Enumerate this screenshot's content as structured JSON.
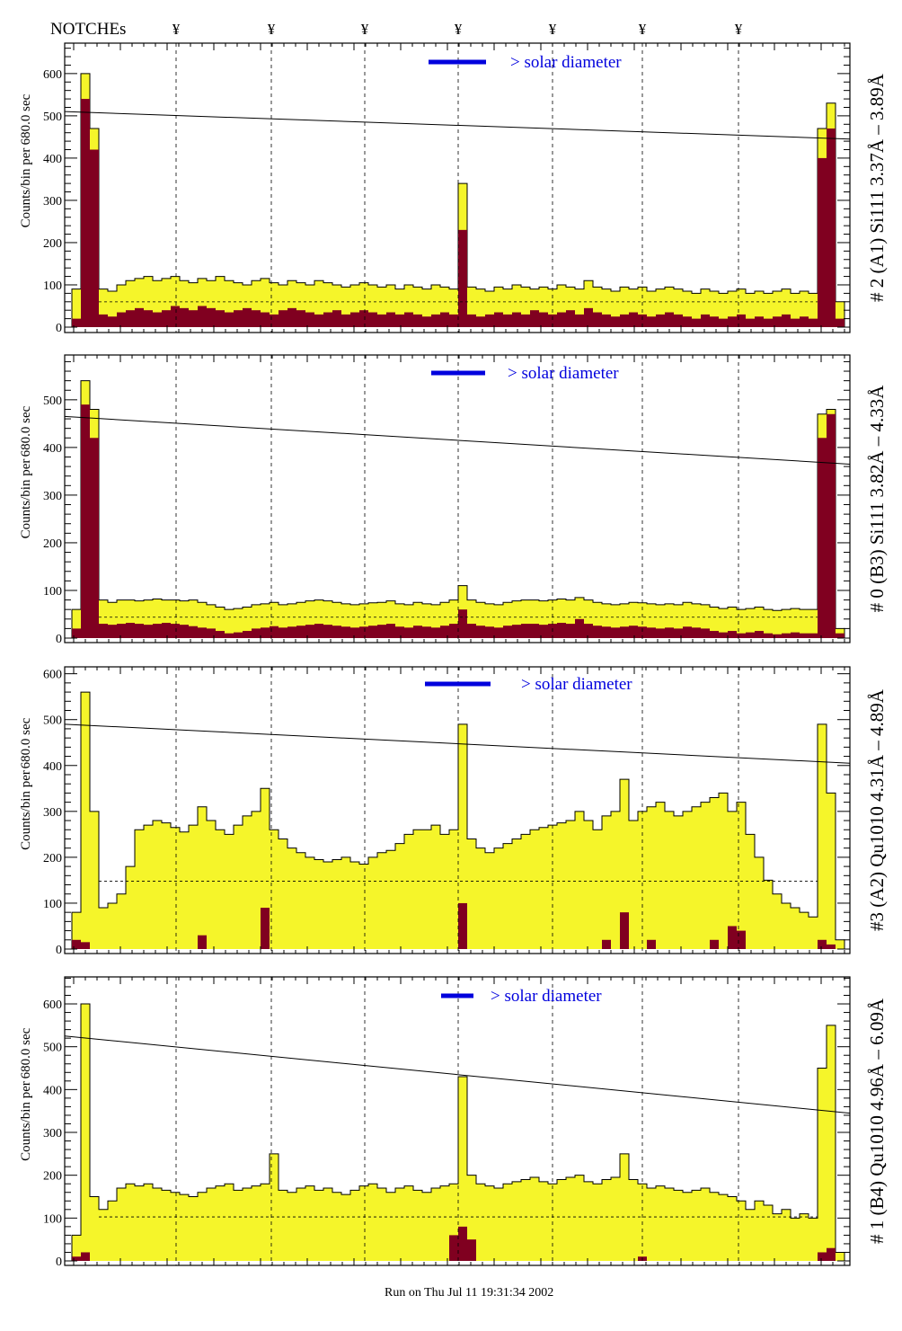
{
  "header": {
    "notches_label": "NOTCHEs",
    "notch_symbol": "¥",
    "notch_count": 7
  },
  "footer": {
    "run_text": "Run on Thu Jul 11 19:31:34 2002"
  },
  "colors": {
    "total_fill": "#f5f52a",
    "filtered_fill": "#800020",
    "legend": "#0000dd",
    "line": "#000000"
  },
  "chart_data": [
    {
      "type": "bar",
      "title": "# 2 (A1) Si111  3.37Å – 3.89Å",
      "ylabel_line1": "Counts/bin per",
      "ylabel_line2": "680.0 sec",
      "legend": "> solar diameter",
      "ylim": [
        0,
        672
      ],
      "yticks": [
        0,
        100,
        200,
        300,
        400,
        500,
        600
      ],
      "trend_line": [
        510,
        445
      ],
      "series": [
        {
          "name": "total",
          "values": [
            90,
            600,
            470,
            90,
            85,
            100,
            110,
            115,
            120,
            110,
            115,
            120,
            110,
            105,
            115,
            110,
            120,
            110,
            105,
            100,
            110,
            115,
            105,
            100,
            110,
            105,
            100,
            110,
            105,
            100,
            95,
            100,
            105,
            100,
            95,
            100,
            90,
            100,
            95,
            90,
            100,
            95,
            90,
            340,
            95,
            90,
            85,
            95,
            90,
            100,
            95,
            90,
            95,
            90,
            100,
            95,
            90,
            110,
            95,
            90,
            85,
            95,
            90,
            95,
            85,
            90,
            95,
            90,
            85,
            80,
            90,
            85,
            80,
            85,
            90,
            80,
            85,
            80,
            85,
            90,
            80,
            85,
            80,
            470,
            530,
            60
          ]
        },
        {
          "name": "filtered",
          "values": [
            20,
            540,
            420,
            30,
            25,
            35,
            40,
            45,
            40,
            35,
            40,
            50,
            45,
            40,
            50,
            45,
            40,
            35,
            40,
            45,
            40,
            35,
            30,
            40,
            45,
            40,
            35,
            30,
            35,
            40,
            30,
            35,
            40,
            35,
            30,
            35,
            30,
            35,
            30,
            25,
            30,
            35,
            30,
            230,
            30,
            25,
            30,
            35,
            30,
            35,
            30,
            40,
            35,
            30,
            35,
            40,
            30,
            45,
            35,
            30,
            25,
            30,
            35,
            30,
            25,
            30,
            35,
            30,
            25,
            20,
            30,
            25,
            20,
            25,
            30,
            20,
            25,
            20,
            25,
            30,
            20,
            25,
            20,
            400,
            470,
            20
          ]
        }
      ]
    },
    {
      "type": "bar",
      "title": "# 0 (B3) Si111  3.82Å – 4.33Å",
      "ylabel_line1": "Counts/bin per",
      "ylabel_line2": "680.0 sec",
      "legend": "> solar diameter",
      "ylim": [
        0,
        594
      ],
      "yticks": [
        0,
        100,
        200,
        300,
        400,
        500
      ],
      "trend_line": [
        465,
        365
      ],
      "series": [
        {
          "name": "total",
          "values": [
            60,
            540,
            480,
            80,
            75,
            80,
            80,
            78,
            80,
            82,
            80,
            80,
            78,
            80,
            75,
            70,
            65,
            60,
            62,
            65,
            70,
            72,
            75,
            70,
            72,
            75,
            78,
            80,
            78,
            75,
            72,
            70,
            72,
            74,
            75,
            78,
            72,
            70,
            75,
            72,
            70,
            75,
            80,
            110,
            80,
            75,
            72,
            70,
            75,
            78,
            80,
            80,
            78,
            80,
            82,
            80,
            85,
            80,
            75,
            72,
            70,
            72,
            75,
            74,
            72,
            70,
            72,
            70,
            75,
            72,
            70,
            65,
            62,
            65,
            60,
            62,
            65,
            60,
            58,
            60,
            62,
            60,
            60,
            470,
            480,
            20
          ]
        },
        {
          "name": "filtered",
          "values": [
            20,
            490,
            420,
            30,
            28,
            30,
            32,
            30,
            28,
            30,
            32,
            30,
            28,
            25,
            22,
            20,
            15,
            10,
            12,
            15,
            20,
            22,
            25,
            22,
            24,
            26,
            28,
            30,
            28,
            26,
            24,
            22,
            24,
            26,
            28,
            30,
            24,
            22,
            26,
            24,
            22,
            26,
            30,
            60,
            30,
            26,
            24,
            22,
            26,
            28,
            30,
            30,
            28,
            30,
            32,
            30,
            40,
            30,
            26,
            24,
            22,
            24,
            26,
            24,
            22,
            20,
            22,
            20,
            24,
            22,
            20,
            15,
            12,
            15,
            10,
            12,
            15,
            10,
            8,
            10,
            12,
            10,
            10,
            420,
            470,
            10
          ]
        }
      ]
    },
    {
      "type": "bar",
      "title": "#3 (A2) Qu1010  4.31Å – 4.89Å",
      "ylabel_line1": "Counts/bin per",
      "ylabel_line2": "680.0 sec",
      "legend": "> solar diameter",
      "ylim": [
        0,
        615
      ],
      "yticks": [
        0,
        100,
        200,
        300,
        400,
        500,
        600
      ],
      "trend_line": [
        490,
        405
      ],
      "series": [
        {
          "name": "total",
          "values": [
            80,
            560,
            300,
            90,
            100,
            120,
            180,
            260,
            270,
            280,
            275,
            265,
            255,
            270,
            310,
            280,
            260,
            250,
            270,
            290,
            300,
            350,
            260,
            240,
            220,
            210,
            200,
            195,
            190,
            195,
            200,
            190,
            185,
            200,
            210,
            215,
            230,
            250,
            260,
            260,
            270,
            250,
            260,
            490,
            240,
            220,
            210,
            220,
            230,
            240,
            250,
            260,
            265,
            270,
            275,
            280,
            300,
            280,
            260,
            290,
            300,
            370,
            280,
            300,
            310,
            320,
            300,
            290,
            300,
            310,
            320,
            330,
            340,
            300,
            320,
            250,
            200,
            150,
            120,
            100,
            90,
            80,
            70,
            490,
            340,
            20
          ]
        },
        {
          "name": "filtered",
          "values": [
            20,
            15,
            0,
            0,
            0,
            0,
            0,
            0,
            0,
            0,
            0,
            0,
            0,
            0,
            30,
            0,
            0,
            0,
            0,
            0,
            0,
            90,
            0,
            0,
            0,
            0,
            0,
            0,
            0,
            0,
            0,
            0,
            0,
            0,
            0,
            0,
            0,
            0,
            0,
            0,
            0,
            0,
            0,
            100,
            0,
            0,
            0,
            0,
            0,
            0,
            0,
            0,
            0,
            0,
            0,
            0,
            0,
            0,
            0,
            20,
            0,
            80,
            0,
            0,
            20,
            0,
            0,
            0,
            0,
            0,
            0,
            20,
            0,
            50,
            40,
            0,
            0,
            0,
            0,
            0,
            0,
            0,
            0,
            20,
            10,
            0
          ]
        }
      ]
    },
    {
      "type": "bar",
      "title": "# 1 (B4) Qu1010 4.96Å – 6.09Å",
      "ylabel_line1": "Counts/bin per",
      "ylabel_line2": "680.0 sec",
      "legend": "> solar diameter",
      "ylim": [
        0,
        663
      ],
      "yticks": [
        0,
        100,
        200,
        300,
        400,
        500,
        600
      ],
      "trend_line": [
        525,
        345
      ],
      "series": [
        {
          "name": "total",
          "values": [
            60,
            600,
            150,
            120,
            140,
            170,
            180,
            175,
            180,
            170,
            165,
            160,
            155,
            150,
            160,
            170,
            175,
            180,
            165,
            170,
            175,
            180,
            250,
            165,
            160,
            170,
            175,
            165,
            170,
            160,
            155,
            165,
            175,
            180,
            170,
            160,
            170,
            175,
            165,
            160,
            170,
            175,
            180,
            430,
            200,
            180,
            175,
            170,
            180,
            185,
            190,
            195,
            185,
            180,
            190,
            195,
            200,
            185,
            180,
            190,
            195,
            250,
            190,
            180,
            170,
            175,
            170,
            165,
            160,
            165,
            170,
            160,
            155,
            150,
            140,
            120,
            140,
            130,
            110,
            120,
            100,
            110,
            100,
            450,
            550,
            20
          ]
        },
        {
          "name": "filtered",
          "values": [
            10,
            20,
            0,
            0,
            0,
            0,
            0,
            0,
            0,
            0,
            0,
            0,
            0,
            0,
            0,
            0,
            0,
            0,
            0,
            0,
            0,
            0,
            0,
            0,
            0,
            0,
            0,
            0,
            0,
            0,
            0,
            0,
            0,
            0,
            0,
            0,
            0,
            0,
            0,
            0,
            0,
            0,
            60,
            80,
            50,
            0,
            0,
            0,
            0,
            0,
            0,
            0,
            0,
            0,
            0,
            0,
            0,
            0,
            0,
            0,
            0,
            0,
            0,
            10,
            0,
            0,
            0,
            0,
            0,
            0,
            0,
            0,
            0,
            0,
            0,
            0,
            0,
            0,
            0,
            0,
            0,
            0,
            0,
            20,
            30,
            0
          ]
        }
      ]
    }
  ]
}
